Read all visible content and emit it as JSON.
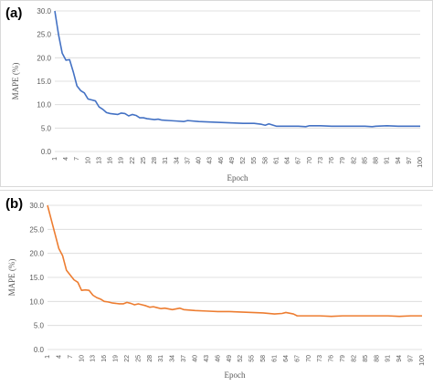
{
  "chart_data": [
    {
      "panel_label": "(a)",
      "type": "line",
      "xlabel": "Epoch",
      "ylabel": "MAPE (%)",
      "ylim": [
        0,
        30
      ],
      "yticks": [
        "0.0",
        "5.0",
        "10.0",
        "15.0",
        "20.0",
        "25.0",
        "30.0"
      ],
      "xticks": [
        1,
        4,
        7,
        10,
        13,
        16,
        19,
        22,
        25,
        28,
        31,
        34,
        37,
        40,
        43,
        46,
        49,
        52,
        55,
        58,
        61,
        64,
        67,
        70,
        73,
        76,
        79,
        82,
        85,
        88,
        91,
        94,
        97,
        100
      ],
      "grid": true,
      "color": "#4472c4",
      "series": [
        {
          "x": [
            1,
            2,
            3,
            4,
            5,
            6,
            7,
            8,
            9,
            10,
            11,
            12,
            13,
            14,
            15,
            16,
            17,
            18,
            19,
            20,
            21,
            22,
            23,
            24,
            25,
            26,
            27,
            28,
            29,
            30,
            32,
            34,
            36,
            37,
            40,
            43,
            46,
            49,
            52,
            55,
            57,
            58,
            59,
            61,
            64,
            67,
            69,
            70,
            73,
            76,
            79,
            82,
            85,
            87,
            88,
            91,
            94,
            97,
            100
          ],
          "values": [
            30.0,
            25.0,
            21.0,
            19.5,
            19.6,
            17.0,
            14.0,
            13.0,
            12.5,
            11.2,
            11.0,
            10.8,
            9.5,
            9.0,
            8.3,
            8.1,
            8.0,
            7.9,
            8.2,
            8.1,
            7.6,
            7.9,
            7.7,
            7.2,
            7.2,
            7.0,
            6.9,
            6.8,
            6.9,
            6.7,
            6.6,
            6.5,
            6.4,
            6.6,
            6.4,
            6.3,
            6.2,
            6.1,
            6.0,
            6.0,
            5.8,
            5.6,
            5.9,
            5.4,
            5.4,
            5.4,
            5.3,
            5.5,
            5.5,
            5.4,
            5.4,
            5.4,
            5.4,
            5.3,
            5.4,
            5.5,
            5.4,
            5.4,
            5.4
          ]
        }
      ]
    },
    {
      "panel_label": "(b)",
      "type": "line",
      "xlabel": "Epoch",
      "ylabel": "MAPE (%)",
      "ylim": [
        0,
        30
      ],
      "yticks": [
        "0.0",
        "5.0",
        "10.0",
        "15.0",
        "20.0",
        "25.0",
        "30.0"
      ],
      "xticks": [
        1,
        4,
        7,
        10,
        13,
        16,
        19,
        22,
        25,
        28,
        31,
        34,
        37,
        40,
        43,
        46,
        49,
        52,
        55,
        58,
        61,
        64,
        67,
        70,
        73,
        76,
        79,
        82,
        85,
        88,
        91,
        94,
        97,
        100
      ],
      "grid": true,
      "color": "#ed7d31",
      "series": [
        {
          "x": [
            1,
            2,
            3,
            4,
            5,
            6,
            7,
            8,
            9,
            10,
            11,
            12,
            13,
            14,
            15,
            16,
            17,
            18,
            19,
            20,
            21,
            22,
            23,
            24,
            25,
            26,
            27,
            28,
            29,
            30,
            31,
            32,
            34,
            36,
            37,
            40,
            43,
            46,
            49,
            52,
            55,
            58,
            61,
            63,
            64,
            66,
            67,
            70,
            73,
            76,
            79,
            82,
            85,
            88,
            91,
            94,
            97,
            100
          ],
          "values": [
            30.0,
            27.0,
            24.0,
            21.0,
            19.5,
            16.5,
            15.5,
            14.5,
            14.0,
            12.3,
            12.4,
            12.3,
            11.3,
            10.8,
            10.5,
            10.0,
            9.9,
            9.7,
            9.6,
            9.5,
            9.5,
            9.8,
            9.6,
            9.3,
            9.5,
            9.3,
            9.1,
            8.8,
            8.9,
            8.7,
            8.5,
            8.6,
            8.3,
            8.6,
            8.3,
            8.1,
            8.0,
            7.9,
            7.9,
            7.8,
            7.7,
            7.6,
            7.4,
            7.5,
            7.7,
            7.4,
            7.0,
            7.0,
            7.0,
            6.9,
            7.0,
            7.0,
            7.0,
            7.0,
            7.0,
            6.9,
            7.0,
            7.0
          ]
        }
      ]
    }
  ]
}
